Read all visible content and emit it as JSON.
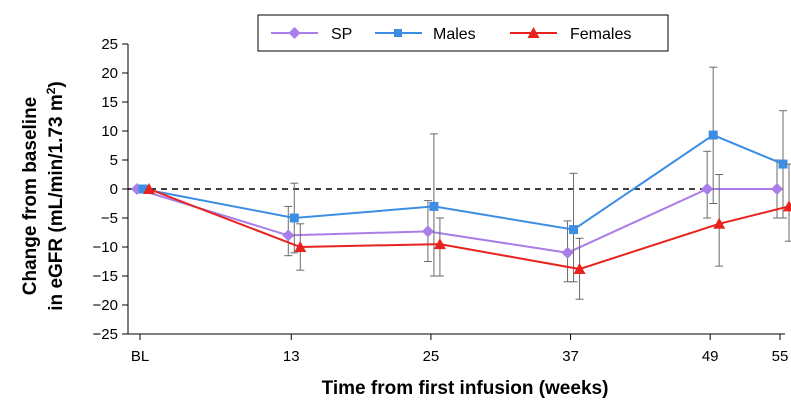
{
  "chart_data": {
    "type": "line",
    "title": "",
    "xlabel": "Time from first infusion (weeks)",
    "ylabel_line1": "Change from baseline",
    "ylabel_line2": "in eGFR (mL/min/1.73 m",
    "ylabel_superscript": "2",
    "ylabel_close": ")",
    "x_tick_labels": [
      "BL",
      "13",
      "25",
      "37",
      "49",
      "55"
    ],
    "x_tick_values": [
      0,
      13,
      25,
      37,
      49,
      55
    ],
    "y_tick_labels": [
      "25",
      "20",
      "15",
      "10",
      "5",
      "0",
      "−5",
      "−10",
      "−15",
      "−20",
      "−25"
    ],
    "y_tick_values": [
      25,
      20,
      15,
      10,
      5,
      0,
      -5,
      -10,
      -15,
      -20,
      -25
    ],
    "ylim": [
      -25,
      25
    ],
    "xlim": [
      0,
      55
    ],
    "grid": false,
    "reference_line": {
      "y": 0,
      "style": "dashed",
      "color": "#000000"
    },
    "legend_position": "top-center",
    "series": [
      {
        "name": "SP",
        "color": "#a97ee8",
        "marker": "diamond",
        "x": [
          0,
          13,
          25,
          37,
          49,
          55
        ],
        "values": [
          0,
          -8,
          -7.3,
          -11,
          0,
          0
        ],
        "error_low": [
          0,
          -11.5,
          -12.5,
          -16,
          -5,
          -5
        ],
        "error_high": [
          0,
          -3,
          -2,
          -5.5,
          6.5,
          5
        ]
      },
      {
        "name": "Males",
        "color": "#3c8de4",
        "marker": "square",
        "x": [
          0,
          13,
          25,
          37,
          49,
          55
        ],
        "values": [
          0,
          -5,
          -3,
          -7,
          9.3,
          4.3
        ],
        "error_low": [
          0,
          -11,
          -15,
          -16,
          -2.5,
          -5
        ],
        "error_high": [
          0,
          1,
          9.5,
          2.7,
          21,
          13.5
        ]
      },
      {
        "name": "Females",
        "color": "#e8231f",
        "marker": "triangle",
        "x": [
          0,
          13,
          25,
          37,
          49,
          55
        ],
        "values": [
          0,
          -10,
          -9.5,
          -13.8,
          -6,
          -3
        ],
        "error_low": [
          0,
          -14,
          -15,
          -19,
          -13.3,
          -9
        ],
        "error_high": [
          0,
          -6,
          -5,
          -8.5,
          2.5,
          4.3
        ]
      }
    ]
  }
}
